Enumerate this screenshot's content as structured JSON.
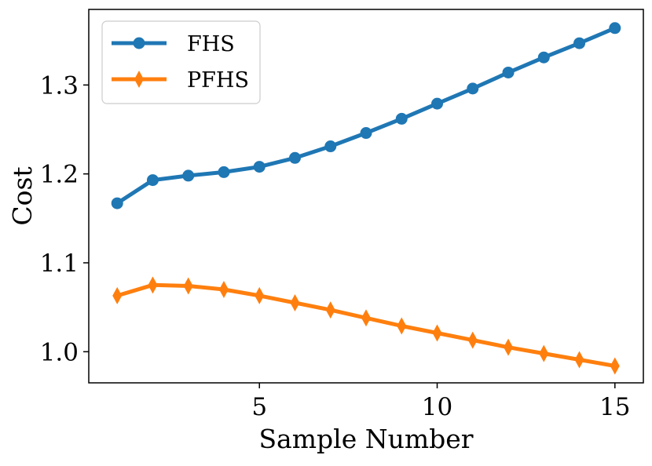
{
  "chart_data": {
    "type": "line",
    "title": "",
    "xlabel": "Sample Number",
    "ylabel": "Cost",
    "xlim": [
      0.2,
      15.8
    ],
    "ylim": [
      0.965,
      1.385
    ],
    "x_ticks": [
      5,
      10,
      15
    ],
    "x_tick_labels": [
      "5",
      "10",
      "15"
    ],
    "y_ticks": [
      1.0,
      1.1,
      1.2,
      1.3
    ],
    "y_tick_labels": [
      "1.0",
      "1.1",
      "1.2",
      "1.3"
    ],
    "grid": false,
    "legend_position": "top-left",
    "x": [
      1,
      2,
      3,
      4,
      5,
      6,
      7,
      8,
      9,
      10,
      11,
      12,
      13,
      14,
      15
    ],
    "series": [
      {
        "name": "FHS",
        "color": "#1f77b4",
        "marker": "circle",
        "values": [
          1.167,
          1.193,
          1.198,
          1.202,
          1.208,
          1.218,
          1.231,
          1.246,
          1.262,
          1.279,
          1.296,
          1.314,
          1.331,
          1.347,
          1.364
        ]
      },
      {
        "name": "PFHS",
        "color": "#ff7f0e",
        "marker": "thin-diamond",
        "values": [
          1.063,
          1.075,
          1.074,
          1.07,
          1.063,
          1.055,
          1.047,
          1.038,
          1.029,
          1.021,
          1.013,
          1.005,
          0.998,
          0.991,
          0.984
        ]
      }
    ]
  }
}
